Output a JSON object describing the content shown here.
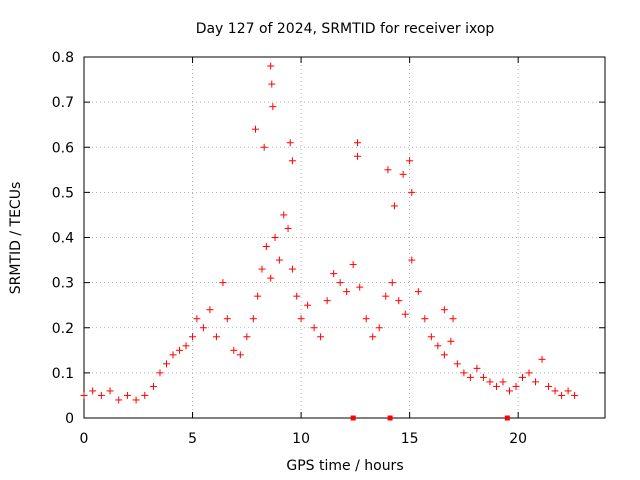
{
  "chart_data": {
    "type": "scatter",
    "title": "Day 127 of 2024, SRMTID for receiver ixop",
    "xlabel": "GPS time / hours",
    "ylabel": "SRMTID / TECUs",
    "xlim": [
      0,
      24
    ],
    "ylim": [
      0,
      0.8
    ],
    "x_ticks": [
      0,
      5,
      10,
      15,
      20
    ],
    "x_tick_labels": [
      "0",
      "5",
      "10",
      "15",
      "20"
    ],
    "y_ticks": [
      0,
      0.1,
      0.2,
      0.3,
      0.4,
      0.5,
      0.6,
      0.7,
      0.8
    ],
    "y_tick_labels": [
      "0",
      "0.1",
      "0.2",
      "0.3",
      "0.4",
      "0.5",
      "0.6",
      "0.7",
      "0.8"
    ],
    "grid": true,
    "marker": "plus",
    "color": "#ff0000",
    "series": [
      {
        "name": "SRMTID",
        "x": [
          0.0,
          0.4,
          0.8,
          1.2,
          1.6,
          2.0,
          2.4,
          2.8,
          3.2,
          3.5,
          3.8,
          4.1,
          4.4,
          4.7,
          5.0,
          5.2,
          5.5,
          5.8,
          6.1,
          6.4,
          6.6,
          6.9,
          7.2,
          7.5,
          7.8,
          8.0,
          8.2,
          8.4,
          8.6,
          8.8,
          9.0,
          9.2,
          9.4,
          9.6,
          9.8,
          10.0,
          10.3,
          10.6,
          10.9,
          11.2,
          11.5,
          11.8,
          12.1,
          12.4,
          12.7,
          13.0,
          13.3,
          13.6,
          13.9,
          14.2,
          14.5,
          14.8,
          15.1,
          15.4,
          15.7,
          16.0,
          16.3,
          16.6,
          16.9,
          17.2,
          17.5,
          17.8,
          18.1,
          18.4,
          18.7,
          19.0,
          19.3,
          19.6,
          19.9,
          20.2,
          20.5,
          20.8,
          21.1,
          21.4,
          21.7,
          22.0,
          22.3,
          22.6,
          8.6,
          8.65,
          8.7,
          7.9,
          8.3,
          9.5,
          9.6,
          12.6,
          12.6,
          14.0,
          14.7,
          15.0,
          15.1,
          14.3,
          16.6,
          17.0
        ],
        "y": [
          0.05,
          0.06,
          0.05,
          0.06,
          0.04,
          0.05,
          0.04,
          0.05,
          0.07,
          0.1,
          0.12,
          0.14,
          0.15,
          0.16,
          0.18,
          0.22,
          0.2,
          0.24,
          0.18,
          0.3,
          0.22,
          0.15,
          0.14,
          0.18,
          0.22,
          0.27,
          0.33,
          0.38,
          0.31,
          0.4,
          0.35,
          0.45,
          0.42,
          0.33,
          0.27,
          0.22,
          0.25,
          0.2,
          0.18,
          0.26,
          0.32,
          0.3,
          0.28,
          0.34,
          0.29,
          0.22,
          0.18,
          0.2,
          0.27,
          0.3,
          0.26,
          0.23,
          0.35,
          0.28,
          0.22,
          0.18,
          0.16,
          0.14,
          0.17,
          0.12,
          0.1,
          0.09,
          0.11,
          0.09,
          0.08,
          0.07,
          0.08,
          0.06,
          0.07,
          0.09,
          0.1,
          0.08,
          0.13,
          0.07,
          0.06,
          0.05,
          0.06,
          0.05,
          0.78,
          0.74,
          0.69,
          0.64,
          0.6,
          0.61,
          0.57,
          0.61,
          0.58,
          0.55,
          0.54,
          0.57,
          0.5,
          0.47,
          0.24,
          0.22
        ]
      }
    ],
    "markers_on_axis": [
      12.4,
      14.1,
      19.5
    ]
  }
}
